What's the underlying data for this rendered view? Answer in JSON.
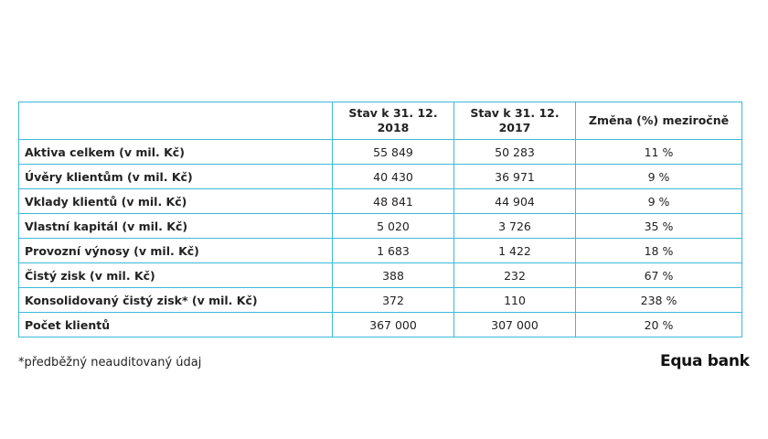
{
  "table": {
    "header": [
      "",
      "Stav k 31. 12. 2018",
      "Stav k 31. 12. 2017",
      "Změna (%) meziročně"
    ],
    "rows": [
      [
        "Aktiva celkem (v mil. Kč)",
        "55 849",
        "50 283",
        "11 %"
      ],
      [
        "Úvěry klientům (v mil. Kč)",
        "40 430",
        "36 971",
        "9 %"
      ],
      [
        "Vklady klientů (v mil. Kč)",
        "48 841",
        "44 904",
        "9 %"
      ],
      [
        "Vlastní kapitál (v mil. Kč)",
        "5 020",
        "3 726",
        "35 %"
      ],
      [
        "Provozní výnosy (v mil. Kč)",
        "1 683",
        "1 422",
        "18 %"
      ],
      [
        "Čistý zisk (v mil. Kč)",
        "388",
        "232",
        "67 %"
      ],
      [
        "Konsolidovaný čistý zisk* (v mil. Kč)",
        "372",
        "110",
        "238 %"
      ],
      [
        "Počet klientů",
        "367 000",
        "307 000",
        "20 %"
      ]
    ]
  },
  "footnote": "*předběžný neauditovaný údaj",
  "logo": "Equa bank"
}
